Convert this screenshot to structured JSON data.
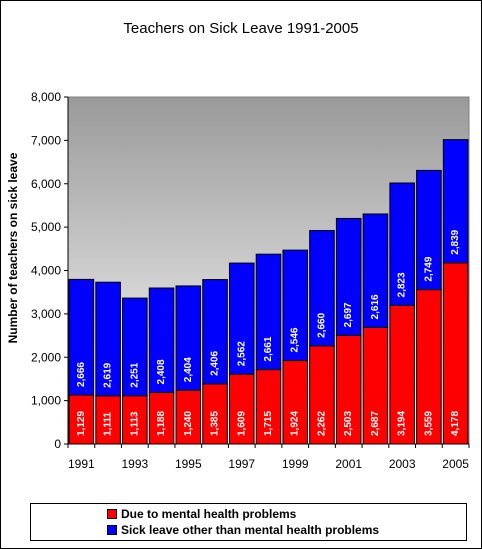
{
  "chart_data": {
    "type": "bar",
    "stacked": true,
    "title": "Teachers on Sick Leave 1991-2005",
    "ylabel": "Number of teachers  on sick leave",
    "xlabel": "",
    "ylim": [
      0,
      8000
    ],
    "yticks": [
      "0",
      "1,000",
      "2,000",
      "3,000",
      "4,000",
      "5,000",
      "6,000",
      "7,000",
      "8,000"
    ],
    "ytick_values": [
      0,
      1000,
      2000,
      3000,
      4000,
      5000,
      6000,
      7000,
      8000
    ],
    "categories": [
      "1991",
      "1992",
      "1993",
      "1994",
      "1995",
      "1996",
      "1997",
      "1998",
      "1999",
      "2000",
      "2001",
      "2002",
      "2003",
      "2004",
      "2005"
    ],
    "xtick_labels_shown": [
      "1991",
      "1993",
      "1995",
      "1997",
      "1999",
      "2001",
      "2003",
      "2005"
    ],
    "series": [
      {
        "name": "Due to mental health problems",
        "color": "#ff0000",
        "values": [
          1129,
          1111,
          1113,
          1188,
          1240,
          1385,
          1609,
          1715,
          1924,
          2262,
          2503,
          2687,
          3194,
          3559,
          4178
        ],
        "labels": [
          "1,129",
          "1,111",
          "1,113",
          "1,188",
          "1,240",
          "1,385",
          "1,609",
          "1,715",
          "1,924",
          "2,262",
          "2,503",
          "2,687",
          "3,194",
          "3,559",
          "4,178"
        ]
      },
      {
        "name": "Sick leave other than mental health problems",
        "color": "#0000ff",
        "values": [
          2666,
          2619,
          2251,
          2408,
          2404,
          2406,
          2562,
          2661,
          2546,
          2660,
          2697,
          2616,
          2823,
          2749,
          2839
        ],
        "labels": [
          "2,666",
          "2,619",
          "2,251",
          "2,408",
          "2,404",
          "2,406",
          "2,562",
          "2,661",
          "2,546",
          "2,660",
          "2,697",
          "2,616",
          "2,823",
          "2,749",
          "2,839"
        ]
      }
    ],
    "plot_background": "gradient-gray",
    "legend_position": "bottom",
    "grid": false
  }
}
